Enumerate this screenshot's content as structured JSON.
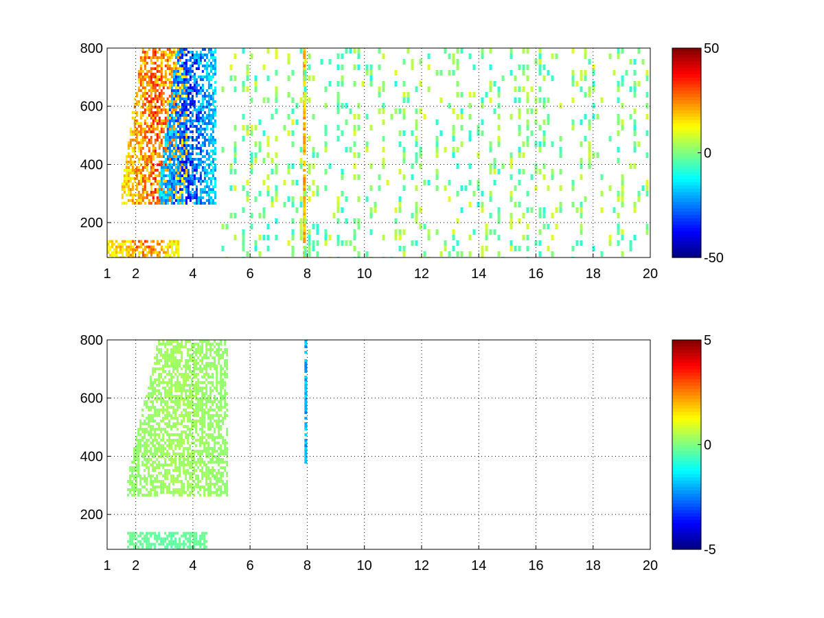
{
  "chart_data": [
    {
      "type": "heatmap",
      "title": "",
      "xlabel": "",
      "ylabel": "",
      "xlim": [
        1,
        20
      ],
      "ylim": [
        80,
        800
      ],
      "xticks": [
        1,
        2,
        4,
        6,
        8,
        10,
        12,
        14,
        16,
        18,
        20
      ],
      "xtick_labels": [
        "1",
        "2",
        "4",
        "6",
        "8",
        "10",
        "12",
        "14",
        "16",
        "18",
        "20"
      ],
      "yticks": [
        200,
        400,
        600,
        800
      ],
      "ytick_labels": [
        "200",
        "400",
        "600",
        "800"
      ],
      "grid": true,
      "colormap": "jet",
      "clim": [
        -50,
        50
      ],
      "colorbar_ticks": [
        50,
        0,
        -50
      ],
      "colorbar_labels": [
        "50",
        "0",
        "-50"
      ],
      "features": [
        {
          "kind": "band",
          "x_range": [
            1.5,
            3.8
          ],
          "y_start": 270,
          "y_end": 800,
          "value": 40
        },
        {
          "kind": "band",
          "x_range": [
            2.8,
            4.8
          ],
          "y_start": 270,
          "y_end": 800,
          "value": -45
        },
        {
          "kind": "band",
          "x_range": [
            1.0,
            3.5
          ],
          "y_start": 80,
          "y_end": 140,
          "value": 35
        },
        {
          "kind": "vertical_line",
          "x": 7.9,
          "y_range": [
            80,
            800
          ],
          "value": 25
        },
        {
          "kind": "sparse_noise",
          "x_range": [
            5.0,
            20.0
          ],
          "y_range": [
            80,
            800
          ],
          "value_range": [
            -10,
            10
          ]
        }
      ]
    },
    {
      "type": "heatmap",
      "title": "",
      "xlabel": "",
      "ylabel": "",
      "xlim": [
        1,
        20
      ],
      "ylim": [
        80,
        800
      ],
      "xticks": [
        1,
        2,
        4,
        6,
        8,
        10,
        12,
        14,
        16,
        18,
        20
      ],
      "xtick_labels": [
        "1",
        "2",
        "4",
        "6",
        "8",
        "10",
        "12",
        "14",
        "16",
        "18",
        "20"
      ],
      "yticks": [
        200,
        400,
        600,
        800
      ],
      "ytick_labels": [
        "200",
        "400",
        "600",
        "800"
      ],
      "grid": true,
      "colormap": "jet",
      "clim": [
        -5,
        5
      ],
      "colorbar_ticks": [
        5,
        0,
        -5
      ],
      "colorbar_labels": [
        "5",
        "0",
        "-5"
      ],
      "features": [
        {
          "kind": "band",
          "x_range": [
            1.7,
            5.2
          ],
          "y_start": 270,
          "y_end": 800,
          "value": 0.5
        },
        {
          "kind": "band",
          "x_range": [
            1.7,
            4.5
          ],
          "y_start": 80,
          "y_end": 140,
          "value": -0.5
        },
        {
          "kind": "vertical_line",
          "x": 7.95,
          "y_range": [
            380,
            800
          ],
          "value": -2.5
        }
      ]
    }
  ]
}
